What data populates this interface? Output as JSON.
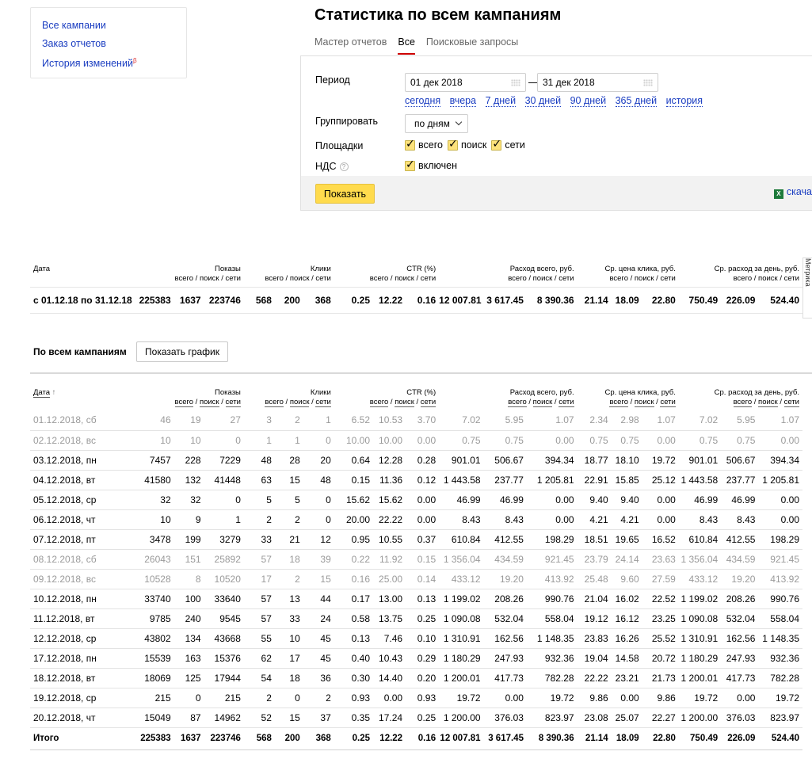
{
  "nav": {
    "items": [
      "Все кампании",
      "Заказ отчетов",
      "История изменений"
    ],
    "beta_mark": "β"
  },
  "title": "Статистика по всем кампаниям",
  "tabs": [
    "Мастер отчетов",
    "Все",
    "Поисковые запросы"
  ],
  "active_tab": "Все",
  "form": {
    "period_label": "Период",
    "date_from": "01 дек 2018",
    "date_to": "31 дек 2018",
    "dash": "—",
    "quick_periods": [
      "сегодня",
      "вчера",
      "7 дней",
      "30 дней",
      "90 дней",
      "365 дней",
      "история"
    ],
    "group_label": "Группировать",
    "group_value": "по дням",
    "platforms_label": "Площадки",
    "platforms": [
      "всего",
      "поиск",
      "сети"
    ],
    "vat_label": "НДС",
    "vat_help": "?",
    "vat_value": "включен",
    "show_button": "Показать",
    "download_label": "скача",
    "xls_icon_glyph": "X"
  },
  "metrika_tab": "Метрика",
  "headers": {
    "date": "Дата",
    "date_sort": "↑",
    "shows": "Показы",
    "clicks": "Клики",
    "ctr": "CTR (%)",
    "spend": "Расход всего, руб.",
    "cpc": "Ср. цена клика, руб.",
    "daily": "Ср. расход за день, руб.",
    "sub": [
      "всего",
      "поиск",
      "сети"
    ],
    "sub_sep": "/"
  },
  "summary": {
    "label": "с 01.12.18 по 31.12.18",
    "values": [
      "225383",
      "1637",
      "223746",
      "568",
      "200",
      "368",
      "0.25",
      "12.22",
      "0.16",
      "12 007.81",
      "3 617.45",
      "8 390.36",
      "21.14",
      "18.09",
      "22.80",
      "750.49",
      "226.09",
      "524.40"
    ]
  },
  "section_title": "По всем кампаниям",
  "chart_button": "Показать график",
  "rows": [
    {
      "date": "01.12.2018, сб",
      "grey": true,
      "v": [
        "46",
        "19",
        "27",
        "3",
        "2",
        "1",
        "6.52",
        "10.53",
        "3.70",
        "7.02",
        "5.95",
        "1.07",
        "2.34",
        "2.98",
        "1.07",
        "7.02",
        "5.95",
        "1.07"
      ]
    },
    {
      "date": "02.12.2018, вс",
      "grey": true,
      "v": [
        "10",
        "10",
        "0",
        "1",
        "1",
        "0",
        "10.00",
        "10.00",
        "0.00",
        "0.75",
        "0.75",
        "0.00",
        "0.75",
        "0.75",
        "0.00",
        "0.75",
        "0.75",
        "0.00"
      ]
    },
    {
      "date": "03.12.2018, пн",
      "grey": false,
      "v": [
        "7457",
        "228",
        "7229",
        "48",
        "28",
        "20",
        "0.64",
        "12.28",
        "0.28",
        "901.01",
        "506.67",
        "394.34",
        "18.77",
        "18.10",
        "19.72",
        "901.01",
        "506.67",
        "394.34"
      ]
    },
    {
      "date": "04.12.2018, вт",
      "grey": false,
      "v": [
        "41580",
        "132",
        "41448",
        "63",
        "15",
        "48",
        "0.15",
        "11.36",
        "0.12",
        "1 443.58",
        "237.77",
        "1 205.81",
        "22.91",
        "15.85",
        "25.12",
        "1 443.58",
        "237.77",
        "1 205.81"
      ]
    },
    {
      "date": "05.12.2018, ср",
      "grey": false,
      "v": [
        "32",
        "32",
        "0",
        "5",
        "5",
        "0",
        "15.62",
        "15.62",
        "0.00",
        "46.99",
        "46.99",
        "0.00",
        "9.40",
        "9.40",
        "0.00",
        "46.99",
        "46.99",
        "0.00"
      ]
    },
    {
      "date": "06.12.2018, чт",
      "grey": false,
      "v": [
        "10",
        "9",
        "1",
        "2",
        "2",
        "0",
        "20.00",
        "22.22",
        "0.00",
        "8.43",
        "8.43",
        "0.00",
        "4.21",
        "4.21",
        "0.00",
        "8.43",
        "8.43",
        "0.00"
      ]
    },
    {
      "date": "07.12.2018, пт",
      "grey": false,
      "v": [
        "3478",
        "199",
        "3279",
        "33",
        "21",
        "12",
        "0.95",
        "10.55",
        "0.37",
        "610.84",
        "412.55",
        "198.29",
        "18.51",
        "19.65",
        "16.52",
        "610.84",
        "412.55",
        "198.29"
      ]
    },
    {
      "date": "08.12.2018, сб",
      "grey": true,
      "v": [
        "26043",
        "151",
        "25892",
        "57",
        "18",
        "39",
        "0.22",
        "11.92",
        "0.15",
        "1 356.04",
        "434.59",
        "921.45",
        "23.79",
        "24.14",
        "23.63",
        "1 356.04",
        "434.59",
        "921.45"
      ]
    },
    {
      "date": "09.12.2018, вс",
      "grey": true,
      "v": [
        "10528",
        "8",
        "10520",
        "17",
        "2",
        "15",
        "0.16",
        "25.00",
        "0.14",
        "433.12",
        "19.20",
        "413.92",
        "25.48",
        "9.60",
        "27.59",
        "433.12",
        "19.20",
        "413.92"
      ]
    },
    {
      "date": "10.12.2018, пн",
      "grey": false,
      "v": [
        "33740",
        "100",
        "33640",
        "57",
        "13",
        "44",
        "0.17",
        "13.00",
        "0.13",
        "1 199.02",
        "208.26",
        "990.76",
        "21.04",
        "16.02",
        "22.52",
        "1 199.02",
        "208.26",
        "990.76"
      ]
    },
    {
      "date": "11.12.2018, вт",
      "grey": false,
      "v": [
        "9785",
        "240",
        "9545",
        "57",
        "33",
        "24",
        "0.58",
        "13.75",
        "0.25",
        "1 090.08",
        "532.04",
        "558.04",
        "19.12",
        "16.12",
        "23.25",
        "1 090.08",
        "532.04",
        "558.04"
      ]
    },
    {
      "date": "12.12.2018, ср",
      "grey": false,
      "v": [
        "43802",
        "134",
        "43668",
        "55",
        "10",
        "45",
        "0.13",
        "7.46",
        "0.10",
        "1 310.91",
        "162.56",
        "1 148.35",
        "23.83",
        "16.26",
        "25.52",
        "1 310.91",
        "162.56",
        "1 148.35"
      ]
    },
    {
      "date": "17.12.2018, пн",
      "grey": false,
      "v": [
        "15539",
        "163",
        "15376",
        "62",
        "17",
        "45",
        "0.40",
        "10.43",
        "0.29",
        "1 180.29",
        "247.93",
        "932.36",
        "19.04",
        "14.58",
        "20.72",
        "1 180.29",
        "247.93",
        "932.36"
      ]
    },
    {
      "date": "18.12.2018, вт",
      "grey": false,
      "v": [
        "18069",
        "125",
        "17944",
        "54",
        "18",
        "36",
        "0.30",
        "14.40",
        "0.20",
        "1 200.01",
        "417.73",
        "782.28",
        "22.22",
        "23.21",
        "21.73",
        "1 200.01",
        "417.73",
        "782.28"
      ]
    },
    {
      "date": "19.12.2018, ср",
      "grey": false,
      "v": [
        "215",
        "0",
        "215",
        "2",
        "0",
        "2",
        "0.93",
        "0.00",
        "0.93",
        "19.72",
        "0.00",
        "19.72",
        "9.86",
        "0.00",
        "9.86",
        "19.72",
        "0.00",
        "19.72"
      ]
    },
    {
      "date": "20.12.2018, чт",
      "grey": false,
      "v": [
        "15049",
        "87",
        "14962",
        "52",
        "15",
        "37",
        "0.35",
        "17.24",
        "0.25",
        "1 200.00",
        "376.03",
        "823.97",
        "23.08",
        "25.07",
        "22.27",
        "1 200.00",
        "376.03",
        "823.97"
      ]
    }
  ],
  "total": {
    "label": "Итого",
    "values": [
      "225383",
      "1637",
      "223746",
      "568",
      "200",
      "368",
      "0.25",
      "12.22",
      "0.16",
      "12 007.81",
      "3 617.45",
      "8 390.36",
      "21.14",
      "18.09",
      "22.80",
      "750.49",
      "226.09",
      "524.40"
    ]
  }
}
